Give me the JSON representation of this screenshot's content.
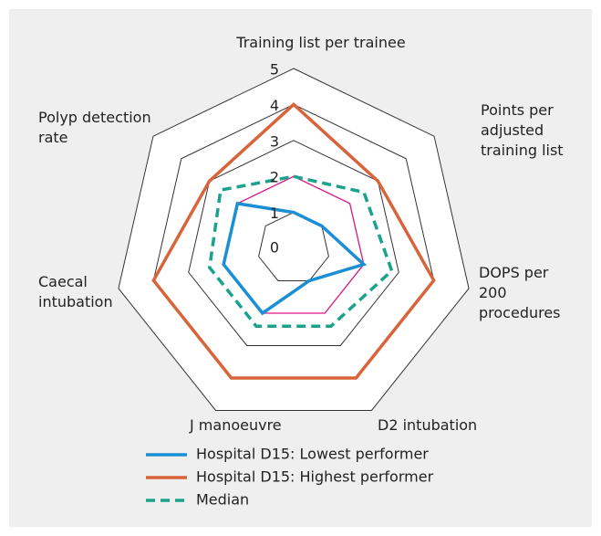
{
  "chart_data": {
    "type": "radar",
    "categories": [
      "Training list per trainee",
      "Points per adjusted training list",
      "DOPS per 200 procedures",
      "D2 intubation",
      "J manoeuvre",
      "Caecal intubation",
      "Polyp detection rate"
    ],
    "series": [
      {
        "name": "Hospital D15: Lowest performer",
        "color": "#1a8fd6",
        "dash": false,
        "values": [
          1,
          1,
          2,
          1,
          2,
          2,
          2
        ]
      },
      {
        "name": "Hospital D15: Highest performer",
        "color": "#d9643a",
        "dash": false,
        "values": [
          4,
          3,
          4,
          4,
          4,
          4,
          3
        ]
      },
      {
        "name": "Median",
        "color": "#1aa38c",
        "dash": true,
        "values": [
          2,
          2.5,
          2.8,
          2.4,
          2.4,
          2.4,
          2.6
        ]
      }
    ],
    "ylim": [
      0,
      5
    ],
    "yticks": [
      0,
      1,
      2,
      3,
      4,
      5
    ],
    "reference_ring": 2,
    "reference_color": "#e0148c"
  }
}
